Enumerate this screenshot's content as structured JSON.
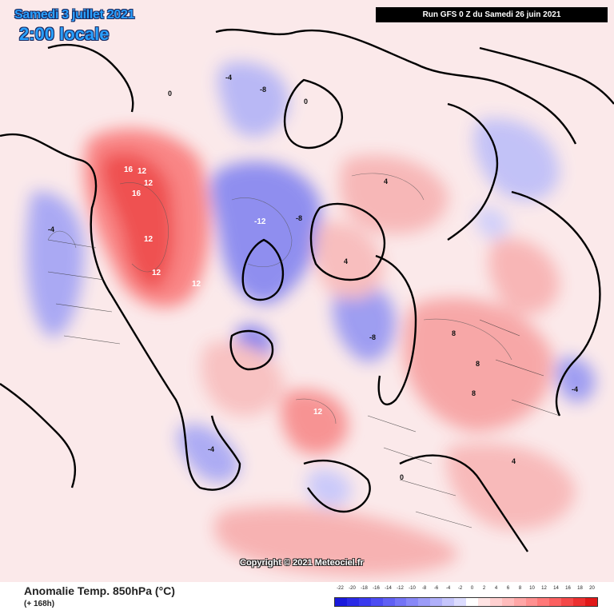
{
  "header": {
    "date_line": "Samedi 3 juillet 2021",
    "time_line": "2:00 locale",
    "run_info": "Run GFS 0 Z du Samedi 26 juin 2021"
  },
  "footer": {
    "title": "Anomalie Temp. 850hPa (°C)",
    "lead_time": "(+ 168h)",
    "copyright": "Copyright © 2021 Meteociel.fr"
  },
  "legend": {
    "ticks": [
      "-22",
      "-20",
      "-18",
      "-16",
      "-14",
      "-12",
      "-10",
      "-8",
      "-6",
      "-4",
      "-2",
      "0",
      "2",
      "4",
      "6",
      "8",
      "10",
      "12",
      "14",
      "16",
      "18",
      "20"
    ],
    "colors": [
      "#1a1adc",
      "#2a2ae6",
      "#3a3aee",
      "#4c4cf2",
      "#6060f4",
      "#7474f6",
      "#8888f7",
      "#9c9cf8",
      "#b0b0fa",
      "#c6c6fc",
      "#dcdcfe",
      "#ffffff",
      "#ffe4e4",
      "#ffd0d0",
      "#ffbcbc",
      "#ffa6a6",
      "#ff9090",
      "#ff7878",
      "#fb6060",
      "#f44848",
      "#ec3030",
      "#e01818"
    ]
  },
  "map": {
    "contour_labels": [
      {
        "text": "16",
        "warm": true
      },
      {
        "text": "16",
        "warm": true
      },
      {
        "text": "12",
        "warm": true
      },
      {
        "text": "12",
        "warm": true
      },
      {
        "text": "12",
        "warm": true
      },
      {
        "text": "12",
        "warm": true
      },
      {
        "text": "12",
        "warm": true
      },
      {
        "text": "12",
        "warm": true
      },
      {
        "text": "-12",
        "warm": false
      },
      {
        "text": "-8",
        "warm": false
      },
      {
        "text": "-8",
        "warm": false
      },
      {
        "text": "-8",
        "warm": false
      },
      {
        "text": "-4",
        "warm": false
      },
      {
        "text": "-4",
        "warm": false
      },
      {
        "text": "-4",
        "warm": false
      },
      {
        "text": "-4",
        "warm": false
      },
      {
        "text": "8",
        "warm": true
      },
      {
        "text": "8",
        "warm": true
      },
      {
        "text": "8",
        "warm": true
      },
      {
        "text": "4",
        "warm": true
      },
      {
        "text": "4",
        "warm": true
      },
      {
        "text": "4",
        "warm": true
      },
      {
        "text": "0",
        "warm": true
      },
      {
        "text": "0",
        "warm": true
      },
      {
        "text": "0",
        "warm": true
      }
    ]
  }
}
